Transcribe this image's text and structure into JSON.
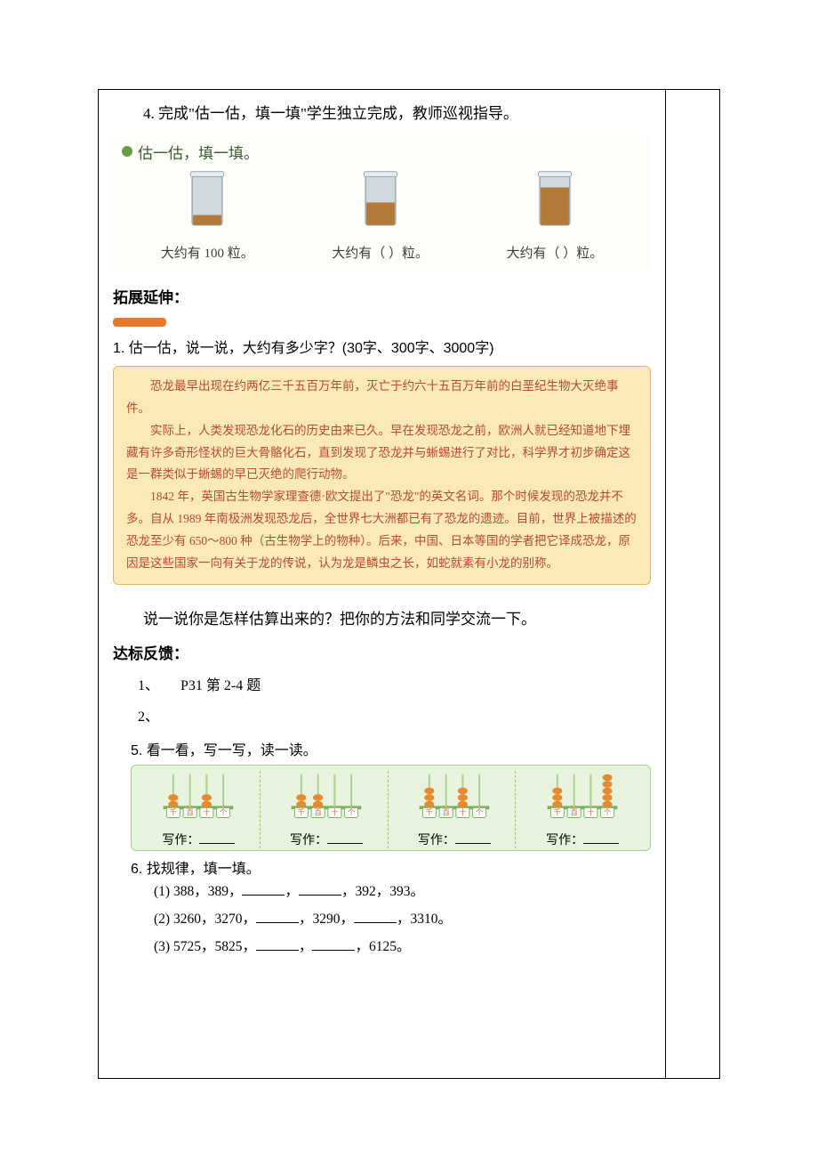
{
  "instruction_4": "4. 完成\"估一估，填一填\"学生独立完成，教师巡视指导。",
  "jar_exercise": {
    "title": "估一估，填一填。",
    "jars": [
      {
        "fill_ratio": 0.2,
        "label": "大约有 100 粒。"
      },
      {
        "fill_ratio": 0.45,
        "label": "大约有（      ）粒。"
      },
      {
        "fill_ratio": 0.75,
        "label": "大约有（      ）粒。"
      }
    ],
    "jar_color": "#b37a3a",
    "glass_color": "#cfd9df",
    "glass_border": "#9aa6ad"
  },
  "ext_title": "拓展延伸：",
  "q1": {
    "title": "1. 估一估，说一说，大约有多少字？(30字、300字、3000字)",
    "passage": [
      "恐龙最早出现在约两亿三千五百万年前，灭亡于约六十五百万年前的白垩纪生物大灭绝事件。",
      "实际上，人类发现恐龙化石的历史由来已久。早在发现恐龙之前，欧洲人就已经知道地下埋藏有许多奇形怪状的巨大骨骼化石，直到发现了恐龙并与蜥蜴进行了对比，科学界才初步确定这是一群类似于蜥蜴的早已灭绝的爬行动物。",
      "1842 年，英国古生物学家理查德·欧文提出了\"恐龙\"的英文名词。那个时候发现的恐龙并不多。自从 1989 年南极洲发现恐龙后，全世界七大洲都已有了恐龙的遗迹。目前，世界上被描述的恐龙至少有 650～800 种（古生物学上的物种）。后来，中国、日本等国的学者把它译成恐龙，原因是这些国家一向有关于龙的传说，认为龙是鳞虫之长，如蛇就素有小龙的别称。"
    ]
  },
  "discuss": "说一说你是怎样估算出来的？把你的方法和同学交流一下。",
  "feedback_title": "达标反馈：",
  "feedback_items": {
    "item1": "1、　　P31 第 2-4 题",
    "item2": "2、"
  },
  "ex5": {
    "title": "5. 看一看，写一写，读一读。",
    "place_labels": [
      "千",
      "百",
      "十",
      "个"
    ],
    "abacus": [
      {
        "beads": [
          2,
          0,
          2,
          0
        ]
      },
      {
        "beads": [
          2,
          2,
          0,
          0
        ]
      },
      {
        "beads": [
          3,
          0,
          3,
          0
        ]
      },
      {
        "beads": [
          3,
          0,
          0,
          5
        ]
      }
    ],
    "bead_color": "#e78a2e",
    "rod_color": "#a8cf8c",
    "frame_color": "#7fae5d",
    "label_color": "#d06a30",
    "write_label": "写作："
  },
  "ex6": {
    "title": "6. 找规律，填一填。",
    "lines": [
      {
        "prefix": "(1) 388，389，",
        "blanks": 2,
        "suffix": "，392，393。"
      },
      {
        "prefix": "(2) 3260，3270，",
        "blanks": 1,
        "mid": "，3290，",
        "blanks2": 1,
        "suffix": "，3310。"
      },
      {
        "prefix": "(3) 5725，5825，",
        "blanks": 2,
        "suffix": "，6125。"
      }
    ]
  }
}
